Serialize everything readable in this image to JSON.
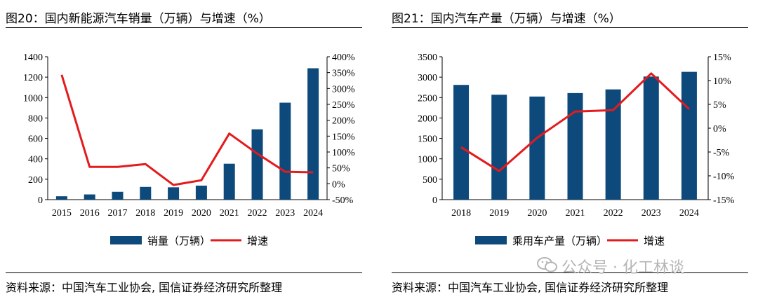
{
  "watermark": "公众号 · 化工林谈",
  "colors": {
    "bar": "#0d4a7b",
    "line": "#e41a1c"
  },
  "charts": [
    {
      "title": "图20：国内新能源汽车销量（万辆）与增速（%）",
      "source": "资料来源：中国汽车工业协会, 国信证券经济研究所整理"
    },
    {
      "title": "图21：国内汽车产量（万辆）与增速（%）",
      "source": "资料来源：中国汽车工业协会, 国信证券经济研究所整理"
    }
  ],
  "chart_data": [
    {
      "type": "bar",
      "categories": [
        "2015",
        "2016",
        "2017",
        "2018",
        "2019",
        "2020",
        "2021",
        "2022",
        "2023",
        "2024"
      ],
      "series": [
        {
          "name": "销量（万辆）",
          "type": "bar",
          "axis": "left",
          "values": [
            33,
            51,
            77,
            125,
            121,
            137,
            352,
            689,
            950,
            1287
          ]
        },
        {
          "name": "增速",
          "type": "line",
          "axis": "right",
          "values": [
            343,
            53,
            53,
            62,
            -4,
            11,
            158,
            95,
            38,
            36
          ]
        }
      ],
      "ylim": [
        0,
        1400
      ],
      "yticks": [
        0,
        200,
        400,
        600,
        800,
        1000,
        1200,
        1400
      ],
      "y2lim": [
        -50,
        400
      ],
      "y2ticks": [
        -50,
        0,
        50,
        100,
        150,
        200,
        250,
        300,
        350,
        400
      ],
      "y2unit": "%",
      "legend": "bottom"
    },
    {
      "type": "bar",
      "categories": [
        "2018",
        "2019",
        "2020",
        "2021",
        "2022",
        "2023",
        "2024"
      ],
      "series": [
        {
          "name": "乘用车产量（万辆）",
          "type": "bar",
          "axis": "left",
          "values": [
            2810,
            2570,
            2525,
            2610,
            2700,
            3015,
            3130
          ]
        },
        {
          "name": "增速",
          "type": "line",
          "axis": "right",
          "values": [
            -4,
            -9,
            -2,
            3.5,
            3.8,
            11.5,
            4
          ]
        }
      ],
      "ylim": [
        0,
        3500
      ],
      "yticks": [
        0,
        500,
        1000,
        1500,
        2000,
        2500,
        3000,
        3500
      ],
      "y2lim": [
        -15,
        15
      ],
      "y2ticks": [
        -15,
        -10,
        -5,
        0,
        5,
        10,
        15
      ],
      "y2unit": "%",
      "legend": "bottom"
    }
  ]
}
